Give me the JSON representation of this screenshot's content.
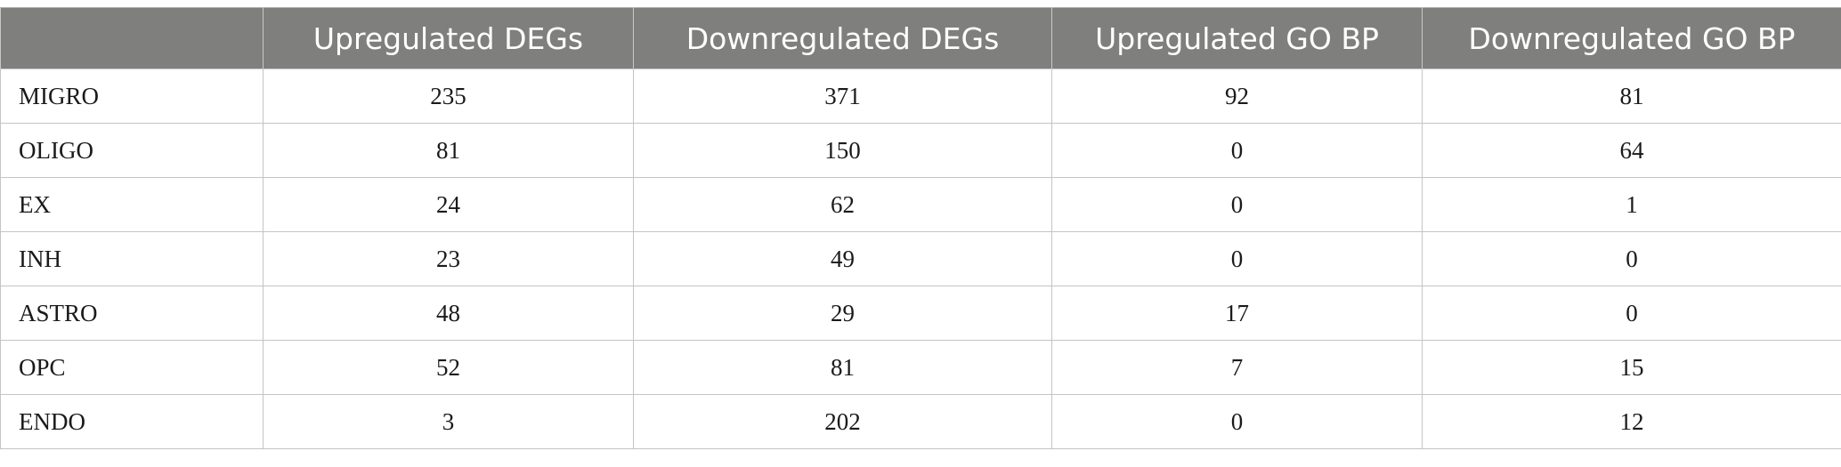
{
  "table": {
    "headers": [
      "",
      "Upregulated DEGs",
      "Downregulated DEGs",
      "Upregulated GO BP",
      "Downregulated GO BP"
    ],
    "rows": [
      {
        "label": "MIGRO",
        "values": [
          "235",
          "371",
          "92",
          "81"
        ]
      },
      {
        "label": "OLIGO",
        "values": [
          "81",
          "150",
          "0",
          "64"
        ]
      },
      {
        "label": "EX",
        "values": [
          "24",
          "62",
          "0",
          "1"
        ]
      },
      {
        "label": "INH",
        "values": [
          "23",
          "49",
          "0",
          "0"
        ]
      },
      {
        "label": "ASTRO",
        "values": [
          "48",
          "29",
          "17",
          "0"
        ]
      },
      {
        "label": "OPC",
        "values": [
          "52",
          "81",
          "7",
          "15"
        ]
      },
      {
        "label": "ENDO",
        "values": [
          "3",
          "202",
          "0",
          "12"
        ]
      }
    ]
  },
  "colors": {
    "header_background": "#7f807e",
    "header_text": "#ffffff",
    "grid_lines": "#c4c4c4"
  }
}
